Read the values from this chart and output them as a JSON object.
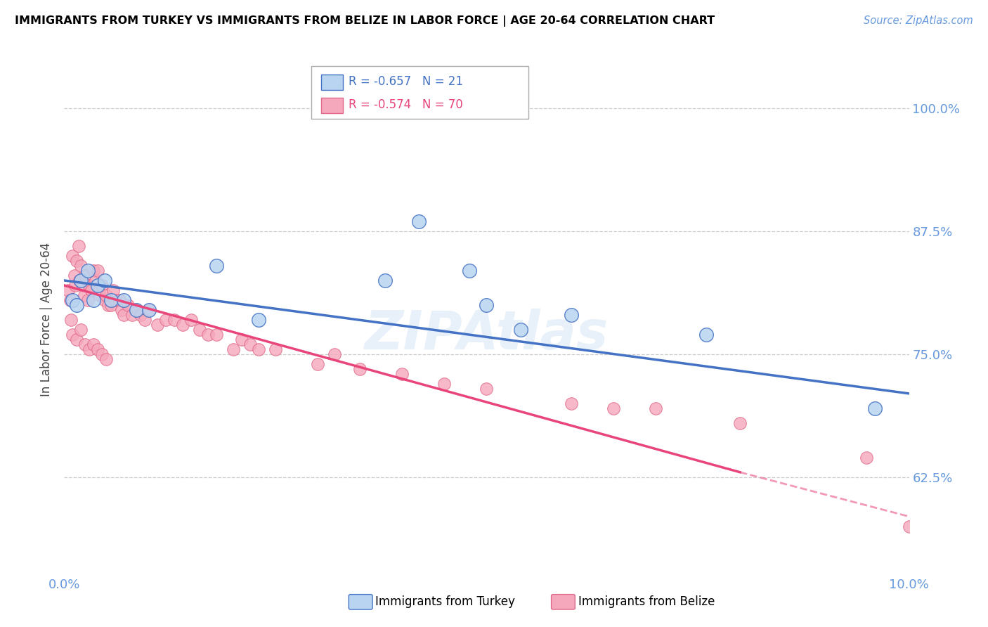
{
  "title": "IMMIGRANTS FROM TURKEY VS IMMIGRANTS FROM BELIZE IN LABOR FORCE | AGE 20-64 CORRELATION CHART",
  "source": "Source: ZipAtlas.com",
  "ylabel": "In Labor Force | Age 20-64",
  "legend_turkey": "Immigrants from Turkey",
  "legend_belize": "Immigrants from Belize",
  "R_turkey": -0.657,
  "N_turkey": 21,
  "R_belize": -0.574,
  "N_belize": 70,
  "xlim": [
    0.0,
    10.0
  ],
  "ylim": [
    53.0,
    104.0
  ],
  "yticks": [
    62.5,
    75.0,
    87.5,
    100.0
  ],
  "xtick_labels": [
    "0.0%",
    "",
    "",
    "",
    "10.0%"
  ],
  "ytick_labels": [
    "62.5%",
    "75.0%",
    "87.5%",
    "100.0%"
  ],
  "color_turkey": "#b8d4f0",
  "color_belize": "#f5a8bc",
  "color_line_turkey": "#4472c4",
  "color_line_belize": "#e8457a",
  "color_axis_labels": "#6699dd",
  "turkey_x": [
    0.1,
    0.15,
    0.2,
    0.28,
    0.35,
    0.4,
    0.48,
    0.55,
    0.7,
    0.85,
    1.0,
    1.8,
    2.3,
    3.8,
    4.2,
    4.8,
    5.0,
    5.4,
    6.0,
    7.6,
    9.6
  ],
  "turkey_y": [
    80.5,
    80.0,
    82.5,
    83.5,
    80.5,
    82.0,
    82.5,
    80.5,
    80.5,
    79.5,
    79.5,
    84.0,
    78.5,
    82.5,
    88.5,
    83.5,
    80.0,
    77.5,
    79.0,
    77.0,
    69.5
  ],
  "belize_x": [
    0.05,
    0.07,
    0.1,
    0.12,
    0.13,
    0.15,
    0.17,
    0.18,
    0.2,
    0.22,
    0.24,
    0.25,
    0.28,
    0.3,
    0.32,
    0.35,
    0.37,
    0.4,
    0.42,
    0.45,
    0.48,
    0.5,
    0.52,
    0.55,
    0.58,
    0.6,
    0.65,
    0.68,
    0.7,
    0.75,
    0.8,
    0.85,
    0.9,
    0.95,
    1.0,
    1.1,
    1.2,
    1.3,
    1.4,
    1.5,
    1.6,
    1.7,
    1.8,
    2.0,
    2.1,
    2.2,
    2.3,
    2.5,
    3.0,
    3.2,
    3.5,
    4.0,
    4.5,
    5.0,
    6.0,
    6.5,
    7.0,
    8.0,
    9.5,
    10.0,
    0.08,
    0.1,
    0.15,
    0.2,
    0.25,
    0.3,
    0.35,
    0.4,
    0.45,
    0.5
  ],
  "belize_y": [
    81.5,
    80.5,
    85.0,
    83.0,
    82.0,
    84.5,
    86.0,
    82.5,
    84.0,
    82.0,
    81.0,
    83.0,
    80.5,
    82.0,
    81.5,
    83.5,
    82.5,
    83.5,
    81.0,
    82.0,
    80.5,
    81.0,
    80.0,
    80.0,
    81.5,
    80.5,
    80.5,
    79.5,
    79.0,
    80.0,
    79.0,
    79.5,
    79.0,
    78.5,
    79.5,
    78.0,
    78.5,
    78.5,
    78.0,
    78.5,
    77.5,
    77.0,
    77.0,
    75.5,
    76.5,
    76.0,
    75.5,
    75.5,
    74.0,
    75.0,
    73.5,
    73.0,
    72.0,
    71.5,
    70.0,
    69.5,
    69.5,
    68.0,
    64.5,
    57.5,
    78.5,
    77.0,
    76.5,
    77.5,
    76.0,
    75.5,
    76.0,
    75.5,
    75.0,
    74.5
  ],
  "line_turkey_x0": 0.0,
  "line_turkey_y0": 82.5,
  "line_turkey_x1": 10.0,
  "line_turkey_y1": 71.0,
  "line_belize_x0": 0.0,
  "line_belize_y0": 82.0,
  "line_belize_x1": 8.0,
  "line_belize_y1": 63.0,
  "line_belize_dash_x0": 8.0,
  "line_belize_dash_y0": 63.0,
  "line_belize_dash_x1": 10.0,
  "line_belize_dash_y1": 58.5
}
